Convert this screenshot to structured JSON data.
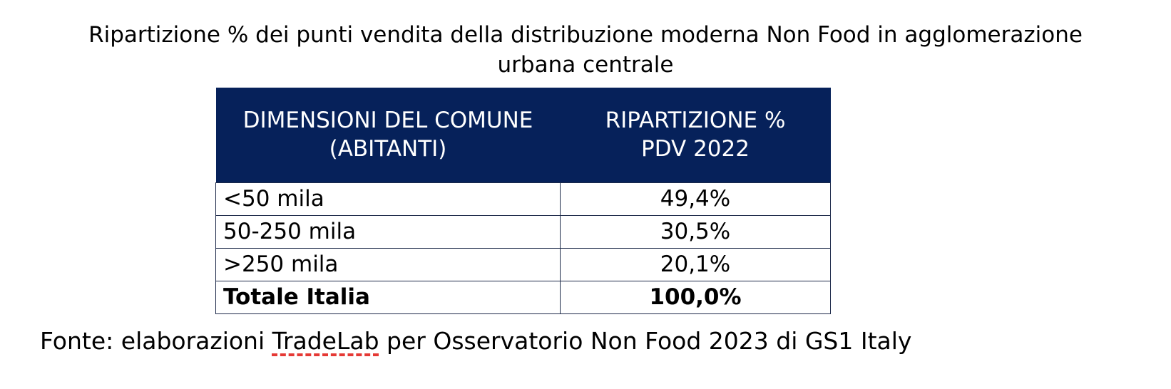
{
  "title": {
    "line1": "Ripartizione % dei punti vendita della distribuzione moderna Non Food in agglomerazione",
    "line2": "urbana centrale"
  },
  "table": {
    "headers": [
      {
        "line1": "DIMENSIONI DEL COMUNE",
        "line2": "(ABITANTI)"
      },
      {
        "line1": "RIPARTIZIONE %",
        "line2": "PDV 2022"
      }
    ],
    "rows": [
      {
        "label": "<50 mila",
        "value": "49,4%"
      },
      {
        "label": "50-250 mila",
        "value": "30,5%"
      },
      {
        "label": ">250 mila",
        "value": "20,1%"
      },
      {
        "label": "Totale Italia",
        "value": "100,0%"
      }
    ],
    "header_color": "#06215a"
  },
  "source": {
    "prefix": "Fonte: elaborazioni ",
    "brand": "TradeLab",
    "suffix": " per Osservatorio Non Food 2023 di GS1 Italy"
  }
}
